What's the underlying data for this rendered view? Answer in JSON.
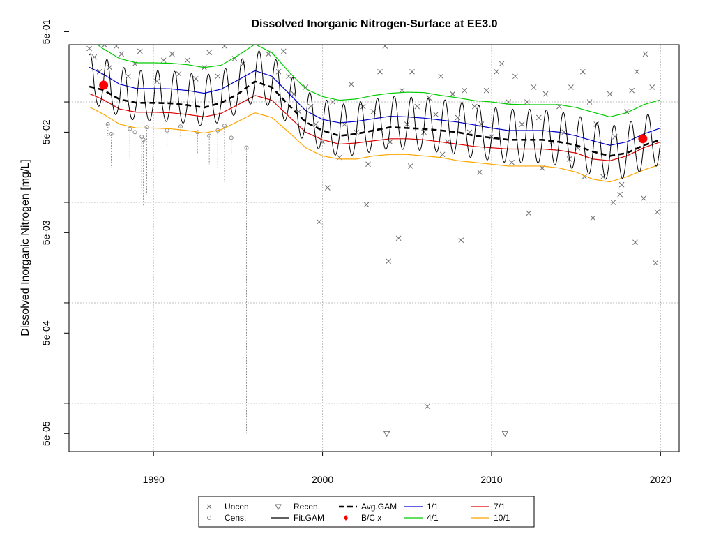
{
  "chart_data": {
    "type": "scatter",
    "title": "Dissolved Inorganic Nitrogen-Surface at EE3.0",
    "xlabel": "",
    "ylabel": "Dissolved Inorganic Nitrogen [mg/L]",
    "xlim": [
      1985.0,
      2021.1
    ],
    "ylim_log10": [
      -4.48,
      -0.43
    ],
    "y_scale": "log",
    "grid": true,
    "legend_position": "bottom-center",
    "x_ticks": [
      1990,
      2000,
      2010,
      2020
    ],
    "x_tick_labels": [
      "1990",
      "2000",
      "2010",
      "2020"
    ],
    "y_ticks": [
      5e-05,
      0.0005,
      0.005,
      0.05,
      0.5
    ],
    "y_tick_labels": [
      "5e-05",
      "5e-04",
      "5e-03",
      "5e-02",
      "5e-01"
    ],
    "y_grid": [
      0.0001,
      0.001,
      0.01,
      0.1
    ],
    "legend": {
      "entries": [
        {
          "symbol": "x",
          "label": "Uncen."
        },
        {
          "symbol": "o",
          "label": "Cens."
        },
        {
          "symbol": "triangle-down",
          "label": "Recen."
        },
        {
          "symbol": "line",
          "label": "Fit.GAM",
          "color": "#000000"
        },
        {
          "symbol": "dashed",
          "label": "Avg.GAM",
          "color": "#000000"
        },
        {
          "symbol": "dot",
          "label": "B/C x",
          "color": "#ff0000"
        },
        {
          "symbol": "line",
          "label": "1/1",
          "color": "#0000cd"
        },
        {
          "symbol": "line",
          "label": "4/1",
          "color": "#00cc00"
        },
        {
          "symbol": "line",
          "label": "7/1",
          "color": "#dd0000"
        },
        {
          "symbol": "line",
          "label": "10/1",
          "color": "#ffa500"
        }
      ]
    },
    "colors": {
      "uncensored": "#6e6e6e",
      "censored": "#888888",
      "fit_gam": "#000000",
      "avg_gam": "#000000",
      "bc_point": "#ff0000",
      "jan1": "#0000cd",
      "apr1": "#00cc00",
      "jul1": "#dd0000",
      "oct1": "#ffa500"
    },
    "series_curves": {
      "x": [
        1986,
        1987,
        1988,
        1989,
        1990,
        1991,
        1992,
        1993,
        1994,
        1995,
        1996,
        1997,
        1998,
        1999,
        2000,
        2001,
        2002,
        2003,
        2004,
        2005,
        2006,
        2007,
        2008,
        2009,
        2010,
        2011,
        2012,
        2013,
        2014,
        2015,
        2016,
        2017,
        2018,
        2019,
        2020
      ],
      "avg_gam": [
        0.145,
        0.132,
        0.106,
        0.098,
        0.098,
        0.097,
        0.093,
        0.088,
        0.098,
        0.12,
        0.16,
        0.14,
        0.093,
        0.063,
        0.052,
        0.046,
        0.048,
        0.052,
        0.056,
        0.055,
        0.054,
        0.052,
        0.05,
        0.046,
        0.044,
        0.042,
        0.042,
        0.042,
        0.04,
        0.037,
        0.032,
        0.029,
        0.031,
        0.037,
        0.042
      ],
      "jan1": [
        0.23,
        0.19,
        0.15,
        0.136,
        0.136,
        0.135,
        0.13,
        0.122,
        0.134,
        0.165,
        0.205,
        0.18,
        0.122,
        0.082,
        0.067,
        0.062,
        0.064,
        0.068,
        0.072,
        0.071,
        0.069,
        0.066,
        0.063,
        0.059,
        0.055,
        0.052,
        0.052,
        0.052,
        0.05,
        0.046,
        0.041,
        0.037,
        0.04,
        0.048,
        0.055
      ],
      "apr1": [
        0.45,
        0.34,
        0.27,
        0.245,
        0.245,
        0.243,
        0.235,
        0.22,
        0.232,
        0.29,
        0.375,
        0.31,
        0.2,
        0.135,
        0.113,
        0.104,
        0.107,
        0.116,
        0.122,
        0.125,
        0.124,
        0.116,
        0.11,
        0.103,
        0.1,
        0.095,
        0.094,
        0.094,
        0.094,
        0.088,
        0.079,
        0.071,
        0.078,
        0.094,
        0.105
      ],
      "jul1": [
        0.125,
        0.106,
        0.085,
        0.079,
        0.079,
        0.078,
        0.075,
        0.071,
        0.077,
        0.094,
        0.116,
        0.104,
        0.072,
        0.05,
        0.042,
        0.038,
        0.039,
        0.041,
        0.043,
        0.043,
        0.042,
        0.04,
        0.038,
        0.036,
        0.035,
        0.034,
        0.034,
        0.034,
        0.033,
        0.031,
        0.027,
        0.026,
        0.029,
        0.035,
        0.04
      ],
      "oct1": [
        0.093,
        0.076,
        0.06,
        0.055,
        0.055,
        0.054,
        0.052,
        0.049,
        0.053,
        0.064,
        0.078,
        0.07,
        0.05,
        0.035,
        0.029,
        0.027,
        0.027,
        0.029,
        0.03,
        0.03,
        0.029,
        0.028,
        0.026,
        0.025,
        0.024,
        0.023,
        0.023,
        0.023,
        0.022,
        0.02,
        0.017,
        0.016,
        0.018,
        0.021,
        0.024
      ]
    },
    "fit_gam": {
      "x_start": 1986.2,
      "x_end": 2019.95,
      "seasonal_peak_year_fraction": 0.25,
      "seasonal_log10_amplitude_above_avg": [
        0.42,
        0.38
      ],
      "seasonal_log10_amplitude_below_avg": [
        0.22,
        0.32
      ]
    },
    "bc_points": [
      {
        "x": 1987.05,
        "y": 0.147
      },
      {
        "x": 2018.95,
        "y": 0.043
      }
    ],
    "recensored_points": [
      {
        "x": 2003.8,
        "y": 5e-05
      },
      {
        "x": 2010.8,
        "y": 5e-05
      }
    ],
    "censored_points": [
      {
        "x": 1987.3,
        "y": 0.06,
        "y_low": 0.046
      },
      {
        "x": 1987.5,
        "y": 0.048,
        "y_low": 0.022
      },
      {
        "x": 1988.6,
        "y": 0.054,
        "y_low": 0.028
      },
      {
        "x": 1988.9,
        "y": 0.05,
        "y_low": 0.02
      },
      {
        "x": 1989.3,
        "y": 0.045,
        "y_low": 0.012
      },
      {
        "x": 1989.4,
        "y": 0.042,
        "y_low": 0.009
      },
      {
        "x": 1989.6,
        "y": 0.056,
        "y_low": 0.012
      },
      {
        "x": 1990.8,
        "y": 0.052,
        "y_low": 0.036
      },
      {
        "x": 1991.6,
        "y": 0.057,
        "y_low": 0.044
      },
      {
        "x": 1992.6,
        "y": 0.05,
        "y_low": 0.03
      },
      {
        "x": 1993.3,
        "y": 0.046,
        "y_low": 0.024
      },
      {
        "x": 1993.8,
        "y": 0.052,
        "y_low": 0.022
      },
      {
        "x": 1994.2,
        "y": 0.058,
        "y_low": 0.016
      },
      {
        "x": 1994.6,
        "y": 0.044,
        "y_low": 0.03
      },
      {
        "x": 1995.5,
        "y": 0.035,
        "y_low": 5e-05
      }
    ],
    "uncensored_points": [
      {
        "x": 1986.2,
        "y": 0.34
      },
      {
        "x": 1986.5,
        "y": 0.28
      },
      {
        "x": 1986.8,
        "y": 0.2
      },
      {
        "x": 1987.1,
        "y": 0.37
      },
      {
        "x": 1987.4,
        "y": 0.22
      },
      {
        "x": 1987.8,
        "y": 0.36
      },
      {
        "x": 1988.1,
        "y": 0.3
      },
      {
        "x": 1988.5,
        "y": 0.18
      },
      {
        "x": 1988.9,
        "y": 0.24
      },
      {
        "x": 1989.2,
        "y": 0.32
      },
      {
        "x": 1989.8,
        "y": 0.4
      },
      {
        "x": 1990.2,
        "y": 0.16
      },
      {
        "x": 1990.6,
        "y": 0.26
      },
      {
        "x": 1991.1,
        "y": 0.3
      },
      {
        "x": 1991.5,
        "y": 0.19
      },
      {
        "x": 1992.0,
        "y": 0.26
      },
      {
        "x": 1992.5,
        "y": 0.17
      },
      {
        "x": 1993.0,
        "y": 0.22
      },
      {
        "x": 1993.3,
        "y": 0.31
      },
      {
        "x": 1993.8,
        "y": 0.18
      },
      {
        "x": 1994.2,
        "y": 0.36
      },
      {
        "x": 1994.4,
        "y": 0.52
      },
      {
        "x": 1994.8,
        "y": 0.27
      },
      {
        "x": 1995.3,
        "y": 0.24
      },
      {
        "x": 1995.8,
        "y": 0.4
      },
      {
        "x": 1996.1,
        "y": 0.45
      },
      {
        "x": 1996.3,
        "y": 0.48
      },
      {
        "x": 1996.5,
        "y": 0.39
      },
      {
        "x": 1996.8,
        "y": 0.3
      },
      {
        "x": 1997.1,
        "y": 0.55
      },
      {
        "x": 1997.4,
        "y": 0.2
      },
      {
        "x": 1997.7,
        "y": 0.32
      },
      {
        "x": 1998.0,
        "y": 0.18
      },
      {
        "x": 1998.3,
        "y": 0.12
      },
      {
        "x": 1998.6,
        "y": 0.08
      },
      {
        "x": 1999.0,
        "y": 0.14
      },
      {
        "x": 1999.3,
        "y": 0.09
      },
      {
        "x": 1999.6,
        "y": 0.06
      },
      {
        "x": 2000.0,
        "y": 0.04
      },
      {
        "x": 2000.3,
        "y": 0.014
      },
      {
        "x": 2000.6,
        "y": 0.1
      },
      {
        "x": 2001.0,
        "y": 0.028
      },
      {
        "x": 2001.3,
        "y": 0.06
      },
      {
        "x": 2001.7,
        "y": 0.15
      },
      {
        "x": 2002.0,
        "y": 0.05
      },
      {
        "x": 2002.4,
        "y": 0.09
      },
      {
        "x": 2002.7,
        "y": 0.024
      },
      {
        "x": 2003.0,
        "y": 0.08
      },
      {
        "x": 2003.4,
        "y": 0.2
      },
      {
        "x": 2003.7,
        "y": 0.36
      },
      {
        "x": 2004.0,
        "y": 0.04
      },
      {
        "x": 2004.2,
        "y": 0.65
      },
      {
        "x": 2004.4,
        "y": 0.44
      },
      {
        "x": 2004.7,
        "y": 0.13
      },
      {
        "x": 2005.0,
        "y": 0.06
      },
      {
        "x": 2005.3,
        "y": 0.2
      },
      {
        "x": 2005.6,
        "y": 0.09
      },
      {
        "x": 2006.0,
        "y": 0.05
      },
      {
        "x": 2006.3,
        "y": 0.11
      },
      {
        "x": 2006.7,
        "y": 0.075
      },
      {
        "x": 2007.0,
        "y": 0.18
      },
      {
        "x": 2007.4,
        "y": 0.04
      },
      {
        "x": 2007.7,
        "y": 0.12
      },
      {
        "x": 2008.0,
        "y": 0.07
      },
      {
        "x": 2008.4,
        "y": 0.13
      },
      {
        "x": 2008.7,
        "y": 0.05
      },
      {
        "x": 2009.0,
        "y": 0.09
      },
      {
        "x": 2009.4,
        "y": 0.06
      },
      {
        "x": 2009.7,
        "y": 0.13
      },
      {
        "x": 2010.0,
        "y": 0.045
      },
      {
        "x": 2010.3,
        "y": 0.2
      },
      {
        "x": 2010.6,
        "y": 0.24
      },
      {
        "x": 2011.0,
        "y": 0.1
      },
      {
        "x": 2011.4,
        "y": 0.18
      },
      {
        "x": 2011.8,
        "y": 0.06
      },
      {
        "x": 2012.1,
        "y": 0.1
      },
      {
        "x": 2012.5,
        "y": 0.14
      },
      {
        "x": 2012.8,
        "y": 0.07
      },
      {
        "x": 2013.2,
        "y": 0.12
      },
      {
        "x": 2013.6,
        "y": 0.04
      },
      {
        "x": 2014.0,
        "y": 0.09
      },
      {
        "x": 2014.3,
        "y": 0.05
      },
      {
        "x": 2014.7,
        "y": 0.14
      },
      {
        "x": 2015.1,
        "y": 0.035
      },
      {
        "x": 2015.4,
        "y": 0.2
      },
      {
        "x": 2015.8,
        "y": 0.1
      },
      {
        "x": 2016.2,
        "y": 0.06
      },
      {
        "x": 2016.6,
        "y": 0.018
      },
      {
        "x": 2017.0,
        "y": 0.12
      },
      {
        "x": 2017.3,
        "y": 0.045
      },
      {
        "x": 2017.7,
        "y": 0.015
      },
      {
        "x": 2018.0,
        "y": 0.08
      },
      {
        "x": 2018.3,
        "y": 0.13
      },
      {
        "x": 2018.6,
        "y": 0.2
      },
      {
        "x": 2018.9,
        "y": 0.44
      },
      {
        "x": 2019.1,
        "y": 0.3
      },
      {
        "x": 2019.5,
        "y": 0.14
      },
      {
        "x": 2019.8,
        "y": 0.008
      },
      {
        "x": 2018.5,
        "y": 0.004
      },
      {
        "x": 2016.0,
        "y": 0.007
      },
      {
        "x": 2017.6,
        "y": 0.012
      },
      {
        "x": 2019.7,
        "y": 0.0025
      },
      {
        "x": 2012.2,
        "y": 0.0078
      },
      {
        "x": 2008.2,
        "y": 0.0042
      },
      {
        "x": 2004.5,
        "y": 0.0044
      },
      {
        "x": 2003.9,
        "y": 0.0026
      },
      {
        "x": 2002.6,
        "y": 0.0095
      },
      {
        "x": 1999.8,
        "y": 0.0064
      },
      {
        "x": 2006.2,
        "y": 9.3e-05
      },
      {
        "x": 2005.2,
        "y": 0.023
      },
      {
        "x": 2007.1,
        "y": 0.03
      },
      {
        "x": 2009.3,
        "y": 0.02
      },
      {
        "x": 2011.2,
        "y": 0.025
      },
      {
        "x": 2013.0,
        "y": 0.022
      },
      {
        "x": 2014.6,
        "y": 0.027
      },
      {
        "x": 2015.5,
        "y": 0.018
      },
      {
        "x": 2017.2,
        "y": 0.01
      },
      {
        "x": 2019.0,
        "y": 0.011
      }
    ]
  }
}
